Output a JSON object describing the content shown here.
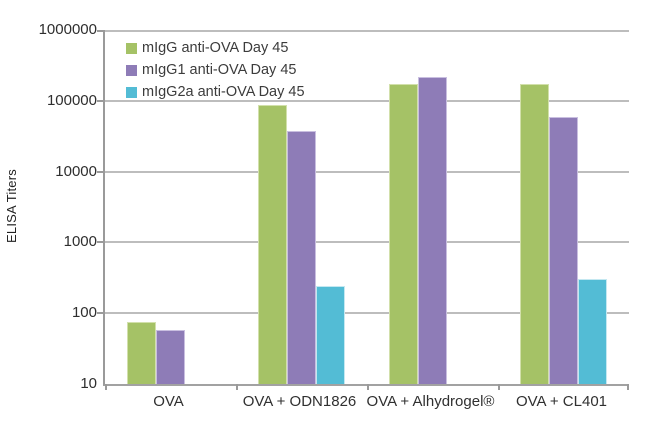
{
  "chart_data": {
    "type": "bar",
    "title": "",
    "ylabel": "ELISA Titers",
    "xlabel": "",
    "y_scale": "log10",
    "ylim": [
      10,
      1000000
    ],
    "y_ticks": [
      10,
      100,
      1000,
      10000,
      100000,
      1000000
    ],
    "grid": "horizontal",
    "legend_position": "top-left-inside",
    "categories": [
      "OVA",
      "OVA + ODN1826",
      "OVA + Alhydrogel®",
      "OVA + CL401"
    ],
    "series": [
      {
        "name": "mIgG anti-OVA Day 45",
        "color": "#a5c266",
        "edge_color": "#d2e0ab",
        "values": [
          75,
          88000,
          175000,
          175000
        ]
      },
      {
        "name": "mIgG1 anti-OVA Day 45",
        "color": "#8e7cb7",
        "edge_color": "#c9bfe0",
        "values": [
          57,
          38000,
          220000,
          59000
        ]
      },
      {
        "name": "mIgG2a anti-OVA Day 45",
        "color": "#53bcd5",
        "edge_color": "#c4e8f1",
        "values": [
          null,
          240,
          null,
          300
        ]
      }
    ]
  },
  "colors": {
    "gridline": "#bdbdbd",
    "axis_line": "#9a9a9a",
    "tick_text": "#2e2e2e",
    "legend_text": "#3c3c3c",
    "background": "#ffffff"
  }
}
